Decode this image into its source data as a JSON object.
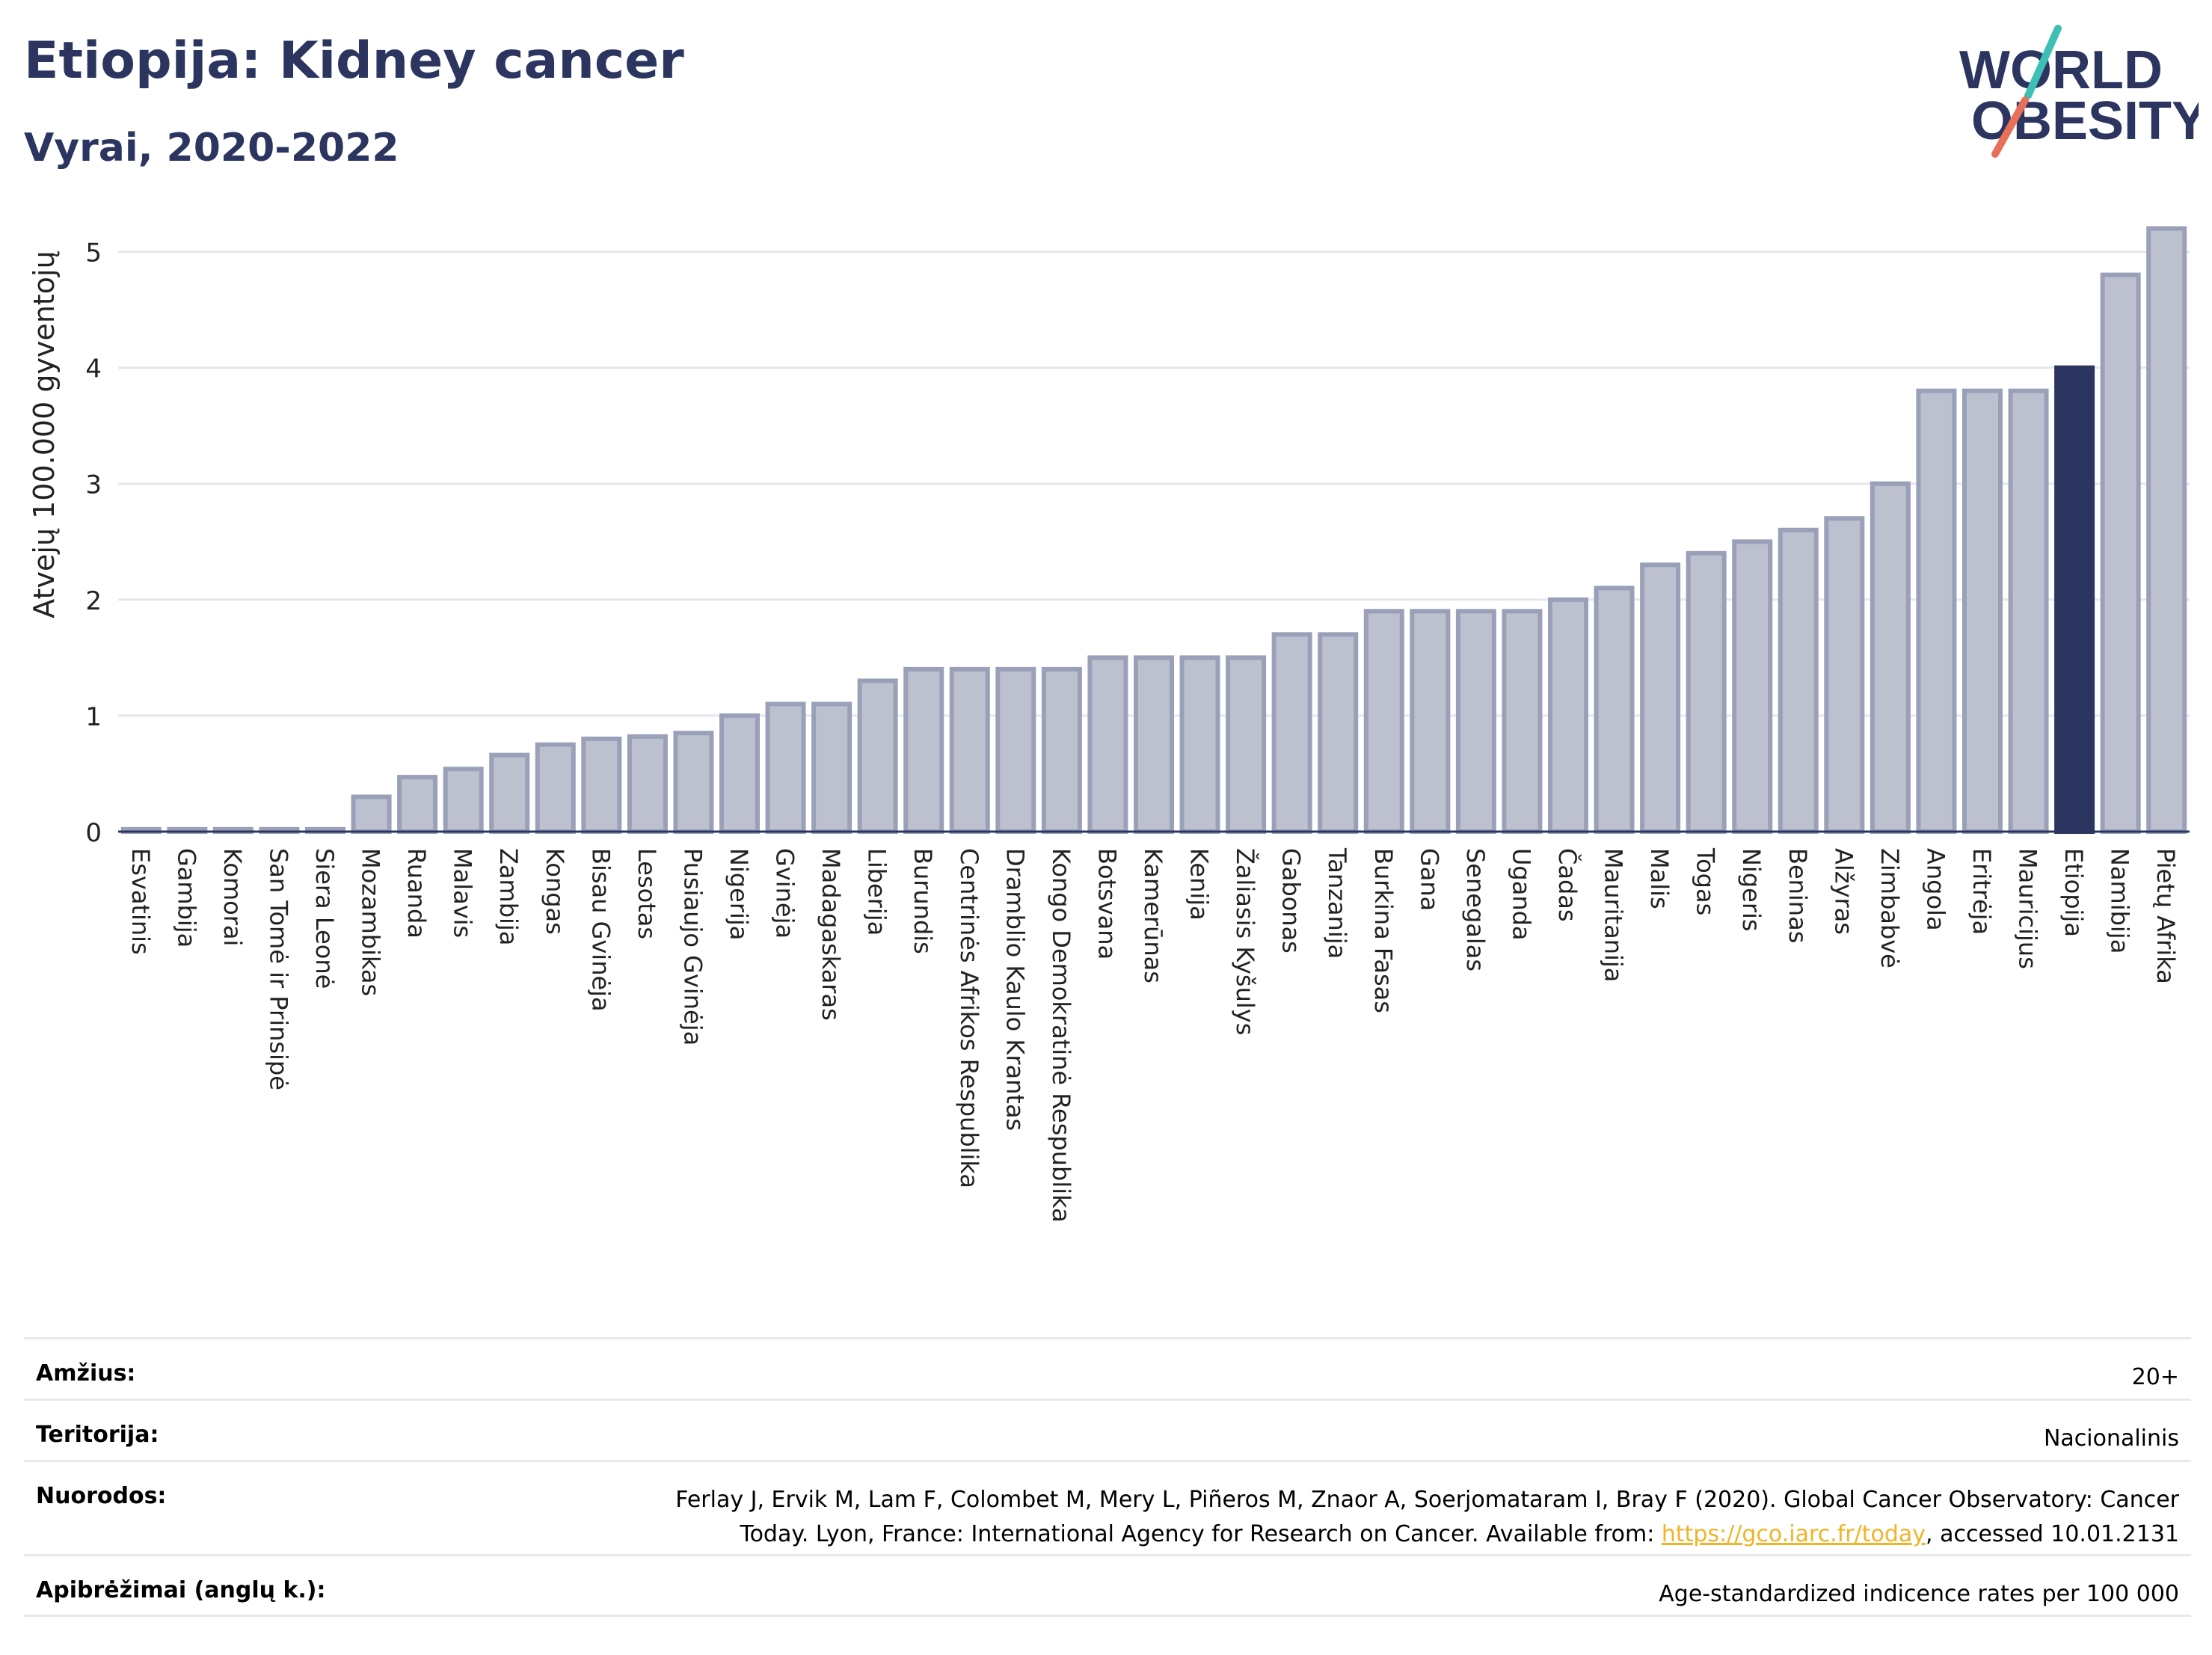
{
  "header": {
    "title": "Etiopija: Kidney cancer",
    "subtitle": "Vyrai, 2020-2022",
    "logo_line1": "WORLD",
    "logo_line2": "OBESITY"
  },
  "colors": {
    "title": "#2b3560",
    "bar": "#bcc0cf",
    "bar_border": "#9aa0b8",
    "highlight": "#2b3560",
    "logo_teal": "#3dbfb5",
    "logo_coral": "#e8705a"
  },
  "chart_data": {
    "type": "bar",
    "ylabel": "Atvejų 100.000 gyventojų",
    "ylim": [
      0,
      5.3
    ],
    "yticks": [
      0,
      1,
      2,
      3,
      4,
      5
    ],
    "grid": true,
    "highlight": "Etiopija",
    "categories": [
      "Esvatinis",
      "Gambija",
      "Komorai",
      "San Tomė ir Prinsipė",
      "Siera Leonė",
      "Mozambikas",
      "Ruanda",
      "Malavis",
      "Zambija",
      "Kongas",
      "Bisau Gvinėja",
      "Lesotas",
      "Pusiaujo Gvinėja",
      "Nigerija",
      "Gvinėja",
      "Madagaskaras",
      "Liberija",
      "Burundis",
      "Centrinės Afrikos Respublika",
      "Dramblio Kaulo Krantas",
      "Kongo Demokratinė Respublika",
      "Botsvana",
      "Kamerūnas",
      "Kenija",
      "Žaliasis Kyšulys",
      "Gabonas",
      "Tanzanija",
      "Burkina Fasas",
      "Gana",
      "Senegalas",
      "Uganda",
      "Čadas",
      "Mauritanija",
      "Malis",
      "Togas",
      "Nigeris",
      "Beninas",
      "Alžyras",
      "Zimbabvė",
      "Angola",
      "Eritrėja",
      "Mauricijus",
      "Etiopija",
      "Namibija",
      "Pietų Afrika"
    ],
    "values": [
      0.02,
      0.02,
      0.02,
      0.02,
      0.02,
      0.3,
      0.47,
      0.54,
      0.66,
      0.75,
      0.8,
      0.82,
      0.85,
      1.0,
      1.1,
      1.1,
      1.3,
      1.4,
      1.4,
      1.4,
      1.4,
      1.5,
      1.5,
      1.5,
      1.5,
      1.7,
      1.7,
      1.9,
      1.9,
      1.9,
      1.9,
      2.0,
      2.1,
      2.3,
      2.4,
      2.5,
      2.6,
      2.7,
      3.0,
      3.8,
      3.8,
      3.8,
      4.0,
      4.8,
      5.2
    ]
  },
  "meta": [
    {
      "key": "Amžius:",
      "value": "20+"
    },
    {
      "key": "Teritorija:",
      "value": "Nacionalinis"
    },
    {
      "key": "Nuorodos:",
      "value_line1": "Ferlay J, Ervik M, Lam F, Colombet M, Mery L, Piñeros M, Znaor A, Soerjomataram I, Bray F (2020). Global Cancer Observatory: Cancer",
      "value_line2_pre": "Today. Lyon, France: International Agency for Research on Cancer. Available from: ",
      "link": "https://gco.iarc.fr/today",
      "value_line2_post": ", accessed 10.01.2131"
    },
    {
      "key": "Apibrėžimai (anglų k.):",
      "value": "Age-standardized indicence rates per 100 000"
    }
  ]
}
